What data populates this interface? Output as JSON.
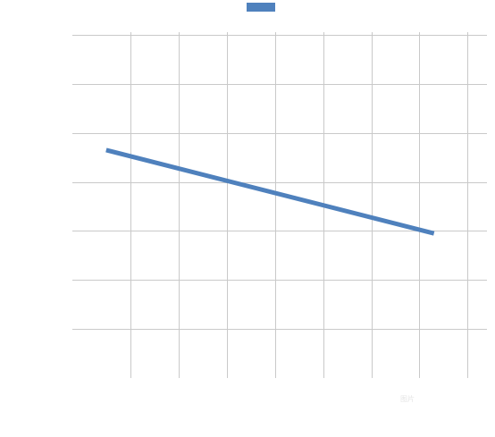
{
  "chart_data": {
    "type": "line",
    "title": "",
    "xlabel": "",
    "ylabel": "",
    "grid": true,
    "legend": "top",
    "x": [
      0.5,
      7.3
    ],
    "xlim": [
      -0.2,
      8.4
    ],
    "ylim": [
      0,
      7
    ],
    "series": [
      {
        "values": [
          4.65,
          2.95
        ],
        "color": "#4f81bd"
      }
    ],
    "watermark": "图片"
  }
}
